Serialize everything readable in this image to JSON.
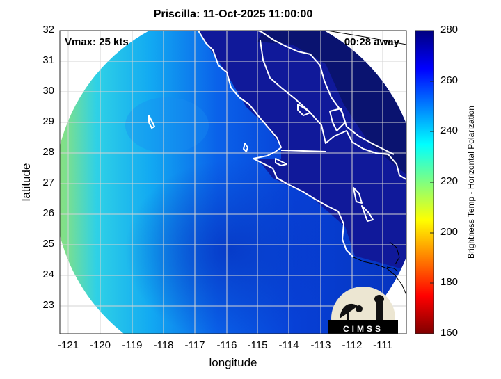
{
  "title": "Priscilla: 11-Oct-2025 11:00:00",
  "vmax_label": "Vmax: 25 kts",
  "time_away_label": "00:28 away",
  "xlabel": "longitude",
  "ylabel": "latitude",
  "xticks": [
    "-121",
    "-120",
    "-119",
    "-118",
    "-117",
    "-116",
    "-115",
    "-114",
    "-113",
    "-112",
    "-111"
  ],
  "yticks": [
    "32",
    "31",
    "30",
    "29",
    "28",
    "27",
    "26",
    "25",
    "24",
    "23"
  ],
  "colorbar": {
    "label": "Brightness Temp - Horizontal Polarization",
    "ticks": [
      "280",
      "260",
      "240",
      "220",
      "200",
      "180",
      "160"
    ],
    "range": [
      160,
      280
    ],
    "colormap": "jet",
    "colors": [
      "#7f0000",
      "#ff0000",
      "#ff8000",
      "#ffff00",
      "#80ff80",
      "#00ffff",
      "#0080ff",
      "#0000ff",
      "#00007f"
    ]
  },
  "logo_text": "CIMSS",
  "chart_data": {
    "type": "heatmap",
    "title": "Priscilla: 11-Oct-2025 11:00:00",
    "xlabel": "longitude",
    "ylabel": "latitude",
    "xlim": [
      -121.3,
      -110.3
    ],
    "ylim": [
      22.2,
      32
    ],
    "grid": true,
    "annotations": [
      "Vmax: 25 kts",
      "00:28 away"
    ],
    "colorbar_range": [
      160,
      280
    ],
    "colorbar_label": "Brightness Temp - Horizontal Polarization",
    "swath_shape": "circular",
    "approx_values": {
      "west_edge": 225,
      "open_ocean_west": 245,
      "center_southwest": 260,
      "land_and_gulf": 275
    }
  }
}
